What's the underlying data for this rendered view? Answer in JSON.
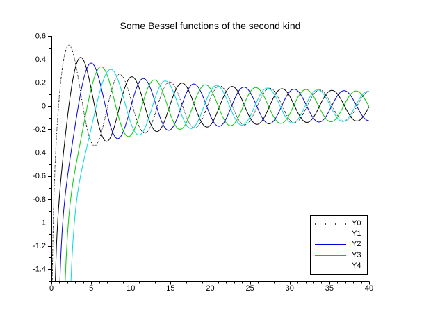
{
  "figure": {
    "background": "#ffffff"
  },
  "chart_data": {
    "type": "line",
    "title": "Some Bessel functions of the second kind",
    "xlabel": "",
    "ylabel": "",
    "x_range": [
      0,
      40
    ],
    "y_range": [
      -1.5,
      0.6
    ],
    "x_ticks": {
      "values": [
        0,
        5,
        10,
        15,
        20,
        25,
        30,
        35,
        40
      ],
      "labels": [
        "0",
        "5",
        "10",
        "15",
        "20",
        "25",
        "30",
        "35",
        "40"
      ],
      "minor_step": 1
    },
    "y_ticks": {
      "values": [
        0.6,
        0.4,
        0.2,
        0,
        -0.2,
        -0.4,
        -0.6,
        -0.8,
        -1,
        -1.2,
        -1.4
      ],
      "labels": [
        "0.6",
        "0.4",
        "0.2",
        "0",
        "-0.2",
        "-0.4",
        "-0.6",
        "-0.8",
        "-1",
        "-1.2",
        "-1.4"
      ],
      "minor_step": 0.1
    },
    "grid": false,
    "axes": {
      "style": "left-and-bottom-only",
      "color": "#000000"
    },
    "sampling": {
      "x_start": 0.1,
      "x_end": 40,
      "x_step": 0.05
    },
    "series": [
      {
        "name": "Y0",
        "function": "bessel_second_kind_order_0",
        "line_style": "dotted",
        "color": "#000000"
      },
      {
        "name": "Y1",
        "function": "bessel_second_kind_order_1",
        "line_style": "solid",
        "color": "#000000"
      },
      {
        "name": "Y2",
        "function": "bessel_second_kind_order_2",
        "line_style": "solid",
        "color": "#0000dd"
      },
      {
        "name": "Y3",
        "function": "bessel_second_kind_order_3",
        "line_style": "solid",
        "color": "#00cc00"
      },
      {
        "name": "Y4",
        "function": "bessel_second_kind_order_4",
        "line_style": "solid",
        "color": "#00dddd"
      }
    ],
    "legend": {
      "position": "inside-lower-right",
      "entries": [
        "Y0",
        "Y1",
        "Y2",
        "Y3",
        "Y4"
      ]
    }
  }
}
